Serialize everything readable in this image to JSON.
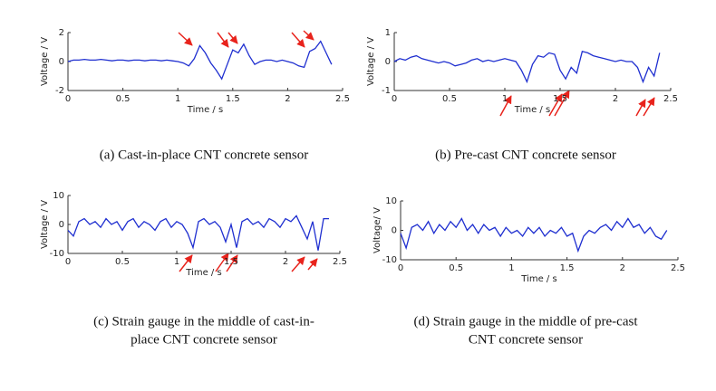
{
  "chart_data": [
    {
      "type": "line",
      "caption": [
        "(a) Cast-in-place CNT concrete sensor"
      ],
      "xlabel": "Time / s",
      "ylabel": "Voltage / V",
      "xlim": [
        0,
        2.5
      ],
      "xticks": [
        0,
        0.5,
        1,
        1.5,
        2,
        2.5
      ],
      "ylim": [
        -2,
        2
      ],
      "yticks": [
        -2,
        0,
        2
      ],
      "color": "#1f2fd0",
      "x": [
        0,
        0.05,
        0.1,
        0.15,
        0.2,
        0.25,
        0.3,
        0.35,
        0.4,
        0.45,
        0.5,
        0.55,
        0.6,
        0.65,
        0.7,
        0.75,
        0.8,
        0.85,
        0.9,
        0.95,
        1,
        1.05,
        1.1,
        1.15,
        1.2,
        1.25,
        1.3,
        1.35,
        1.4,
        1.45,
        1.5,
        1.55,
        1.6,
        1.65,
        1.7,
        1.75,
        1.8,
        1.85,
        1.9,
        1.95,
        2,
        2.05,
        2.1,
        2.15,
        2.2,
        2.25,
        2.3,
        2.35,
        2.4
      ],
      "values": [
        0,
        0.1,
        0.1,
        0.15,
        0.1,
        0.1,
        0.15,
        0.1,
        0.05,
        0.1,
        0.1,
        0.05,
        0.1,
        0.1,
        0.05,
        0.1,
        0.1,
        0.05,
        0.1,
        0.05,
        0,
        -0.1,
        -0.3,
        0.2,
        1.1,
        0.6,
        -0.1,
        -0.6,
        -1.2,
        -0.2,
        0.8,
        0.6,
        1.2,
        0.4,
        -0.2,
        0,
        0.1,
        0.1,
        0,
        0.1,
        0,
        -0.1,
        -0.3,
        -0.4,
        0.7,
        0.9,
        1.4,
        0.6,
        -0.2
      ]
    },
    {
      "type": "line",
      "caption": [
        "(b) Pre-cast CNT concrete sensor"
      ],
      "xlabel": "Time / s",
      "ylabel": "Voltage / V",
      "xlim": [
        0,
        2.5
      ],
      "xticks": [
        0,
        0.5,
        1,
        1.5,
        2,
        2.5
      ],
      "ylim": [
        -1,
        1
      ],
      "yticks": [
        -1,
        0,
        1
      ],
      "color": "#1f2fd0",
      "x": [
        0,
        0.05,
        0.1,
        0.15,
        0.2,
        0.25,
        0.3,
        0.35,
        0.4,
        0.45,
        0.5,
        0.55,
        0.6,
        0.65,
        0.7,
        0.75,
        0.8,
        0.85,
        0.9,
        0.95,
        1,
        1.05,
        1.1,
        1.15,
        1.2,
        1.25,
        1.3,
        1.35,
        1.4,
        1.45,
        1.5,
        1.55,
        1.6,
        1.65,
        1.7,
        1.75,
        1.8,
        1.85,
        1.9,
        1.95,
        2,
        2.05,
        2.1,
        2.15,
        2.2,
        2.25,
        2.3,
        2.35,
        2.4
      ],
      "values": [
        0,
        0.1,
        0.05,
        0.15,
        0.2,
        0.1,
        0.05,
        0,
        -0.05,
        0,
        -0.05,
        -0.15,
        -0.1,
        -0.05,
        0.05,
        0.1,
        0,
        0.05,
        0,
        0.05,
        0.1,
        0.05,
        0,
        -0.3,
        -0.7,
        -0.1,
        0.2,
        0.15,
        0.3,
        0.25,
        -0.3,
        -0.6,
        -0.2,
        -0.4,
        0.35,
        0.3,
        0.2,
        0.15,
        0.1,
        0.05,
        0,
        0.05,
        0,
        0,
        -0.2,
        -0.7,
        -0.2,
        -0.5,
        0.3
      ]
    },
    {
      "type": "line",
      "caption": [
        "(c) Strain gauge in the middle of cast-in-",
        "place CNT concrete sensor"
      ],
      "xlabel": "Time / s",
      "ylabel": "Voltage / V",
      "xlim": [
        0,
        2.5
      ],
      "xticks": [
        0,
        0.5,
        1,
        1.5,
        2,
        2.5
      ],
      "ylim": [
        -10,
        10
      ],
      "yticks": [
        -10,
        0,
        10
      ],
      "color": "#1f2fd0",
      "x": [
        0,
        0.05,
        0.1,
        0.15,
        0.2,
        0.25,
        0.3,
        0.35,
        0.4,
        0.45,
        0.5,
        0.55,
        0.6,
        0.65,
        0.7,
        0.75,
        0.8,
        0.85,
        0.9,
        0.95,
        1,
        1.05,
        1.1,
        1.15,
        1.2,
        1.25,
        1.3,
        1.35,
        1.4,
        1.45,
        1.5,
        1.55,
        1.6,
        1.65,
        1.7,
        1.75,
        1.8,
        1.85,
        1.9,
        1.95,
        2,
        2.05,
        2.1,
        2.15,
        2.2,
        2.25,
        2.3,
        2.35,
        2.4
      ],
      "values": [
        -2,
        -4,
        1,
        2,
        0,
        1,
        -1,
        2,
        0,
        1,
        -2,
        1,
        2,
        -1,
        1,
        0,
        -2,
        1,
        2,
        -1,
        1,
        0,
        -3,
        -8,
        1,
        2,
        0,
        1,
        -1,
        -6,
        0,
        -8,
        1,
        2,
        0,
        1,
        -1,
        2,
        1,
        -1,
        2,
        1,
        3,
        -1,
        -5,
        1,
        -9,
        2,
        2
      ]
    },
    {
      "type": "line",
      "caption": [
        "(d) Strain gauge in the middle of pre-cast",
        "CNT concrete sensor"
      ],
      "xlabel": "Time / s",
      "ylabel": "Voltage/ V",
      "xlim": [
        0,
        2.5
      ],
      "xticks": [
        0,
        0.5,
        1,
        1.5,
        2,
        2.5
      ],
      "ylim": [
        -10,
        10
      ],
      "yticks": [
        -10,
        0,
        10
      ],
      "color": "#1f2fd0",
      "x": [
        0,
        0.05,
        0.1,
        0.15,
        0.2,
        0.25,
        0.3,
        0.35,
        0.4,
        0.45,
        0.5,
        0.55,
        0.6,
        0.65,
        0.7,
        0.75,
        0.8,
        0.85,
        0.9,
        0.95,
        1,
        1.05,
        1.1,
        1.15,
        1.2,
        1.25,
        1.3,
        1.35,
        1.4,
        1.45,
        1.5,
        1.55,
        1.6,
        1.65,
        1.7,
        1.75,
        1.8,
        1.85,
        1.9,
        1.95,
        2,
        2.05,
        2.1,
        2.15,
        2.2,
        2.25,
        2.3,
        2.35,
        2.4
      ],
      "values": [
        -1,
        -6,
        1,
        2,
        0,
        3,
        -1,
        2,
        0,
        3,
        1,
        4,
        0,
        2,
        -1,
        2,
        0,
        1,
        -2,
        1,
        -1,
        0,
        -2,
        1,
        -1,
        1,
        -2,
        0,
        -1,
        1,
        -2,
        -1,
        -7,
        -2,
        0,
        -1,
        1,
        2,
        0,
        3,
        1,
        4,
        1,
        2,
        -1,
        1,
        -2,
        -3,
        0
      ]
    }
  ]
}
